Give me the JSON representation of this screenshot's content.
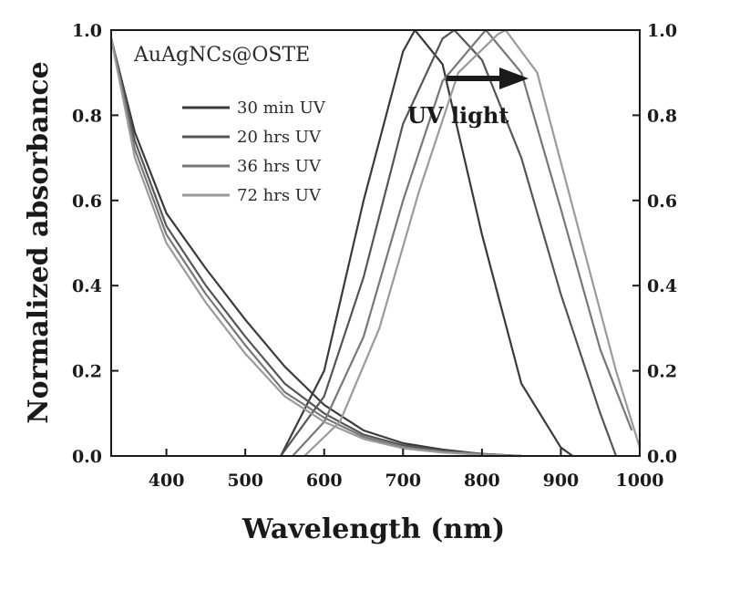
{
  "chart_data": {
    "type": "line",
    "title": "AuAgNCs@OSTE",
    "xlabel": "Wavelength (nm)",
    "ylabel": "Normalized absorbance",
    "xlim": [
      330,
      1000
    ],
    "ylim": [
      0,
      1.0
    ],
    "x_ticks": [
      "400",
      "500",
      "600",
      "700",
      "800",
      "900",
      "1000"
    ],
    "y_ticks_left": [
      "0.0",
      "0.2",
      "0.4",
      "0.6",
      "0.8",
      "1.0"
    ],
    "y_ticks_right": [
      "0.0",
      "0.2",
      "0.4",
      "0.6",
      "0.8",
      "1.0"
    ],
    "annotation": "UV light",
    "legend_placement": "top-left",
    "series": [
      {
        "name": "30 min UV",
        "color": "#3a3a3a",
        "uv_curve": {
          "x": [
            330,
            360,
            400,
            450,
            500,
            550,
            600,
            650,
            700,
            750,
            800,
            850
          ],
          "y": [
            0.98,
            0.76,
            0.57,
            0.44,
            0.32,
            0.21,
            0.12,
            0.06,
            0.03,
            0.015,
            0.005,
            0.0
          ]
        },
        "nir_peak": {
          "x": [
            545,
            600,
            650,
            700,
            715,
            750,
            800,
            850,
            900,
            915
          ],
          "y": [
            0.0,
            0.2,
            0.6,
            0.95,
            1.0,
            0.92,
            0.52,
            0.17,
            0.02,
            0.0
          ]
        }
      },
      {
        "name": "20 hrs UV",
        "color": "#555555",
        "uv_curve": {
          "x": [
            330,
            360,
            400,
            450,
            500,
            550,
            600,
            650,
            700,
            750,
            800,
            850
          ],
          "y": [
            0.98,
            0.74,
            0.54,
            0.4,
            0.28,
            0.17,
            0.1,
            0.05,
            0.025,
            0.012,
            0.005,
            0.0
          ]
        },
        "nir_peak": {
          "x": [
            545,
            600,
            650,
            700,
            750,
            765,
            800,
            850,
            900,
            950,
            970
          ],
          "y": [
            0.0,
            0.14,
            0.42,
            0.78,
            0.98,
            1.0,
            0.93,
            0.7,
            0.38,
            0.1,
            0.0
          ]
        }
      },
      {
        "name": "36 hrs UV",
        "color": "#777777",
        "uv_curve": {
          "x": [
            330,
            360,
            400,
            450,
            500,
            550,
            600,
            650,
            700,
            750,
            800,
            850
          ],
          "y": [
            0.98,
            0.72,
            0.52,
            0.38,
            0.26,
            0.15,
            0.09,
            0.045,
            0.02,
            0.01,
            0.004,
            0.0
          ]
        },
        "nir_peak": {
          "x": [
            560,
            600,
            650,
            700,
            750,
            800,
            805,
            850,
            900,
            950,
            990
          ],
          "y": [
            0.0,
            0.08,
            0.28,
            0.6,
            0.88,
            0.99,
            1.0,
            0.9,
            0.58,
            0.25,
            0.06
          ]
        }
      },
      {
        "name": "72 hrs UV",
        "color": "#9a9a9a",
        "uv_curve": {
          "x": [
            330,
            360,
            400,
            450,
            500,
            550,
            600,
            650,
            700,
            750,
            800,
            850
          ],
          "y": [
            0.98,
            0.7,
            0.5,
            0.36,
            0.24,
            0.14,
            0.08,
            0.04,
            0.018,
            0.008,
            0.003,
            0.0
          ]
        },
        "nir_peak": {
          "x": [
            575,
            620,
            670,
            720,
            770,
            820,
            830,
            870,
            920,
            970,
            1000
          ],
          "y": [
            0.0,
            0.08,
            0.3,
            0.62,
            0.9,
            0.99,
            1.0,
            0.9,
            0.55,
            0.2,
            0.02
          ]
        }
      }
    ]
  }
}
